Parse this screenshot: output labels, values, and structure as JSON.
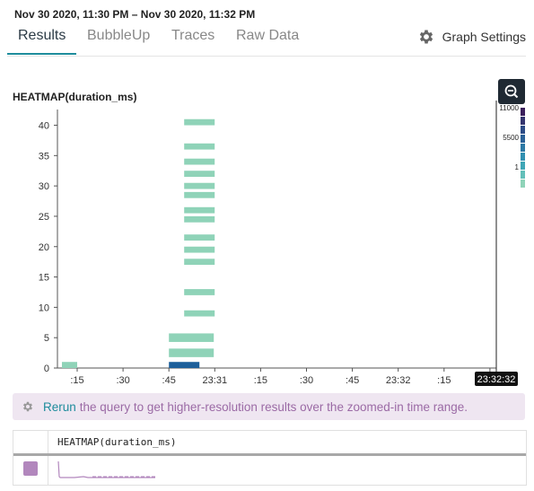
{
  "header": {
    "time_start": "Nov 30 2020, 11:30 PM",
    "time_sep": "–",
    "time_end": "Nov 30 2020, 11:32 PM"
  },
  "tabs": [
    {
      "label": "Results",
      "active": true
    },
    {
      "label": "BubbleUp",
      "active": false
    },
    {
      "label": "Traces",
      "active": false
    },
    {
      "label": "Raw Data",
      "active": false
    }
  ],
  "graph_settings_label": "Graph Settings",
  "chart": {
    "title": "HEATMAP(duration_ms)",
    "colors": {
      "low": "#8fd3b8",
      "mid": "#3fa7b5",
      "high": "#1d5f9a",
      "max": "#3b1f5c"
    }
  },
  "chart_data": {
    "type": "heatmap",
    "title": "HEATMAP(duration_ms)",
    "y_ticks": [
      0,
      5,
      10,
      15,
      20,
      25,
      30,
      35,
      40
    ],
    "ylim": [
      0,
      42
    ],
    "x_ticks": [
      ":15",
      ":30",
      ":45",
      "23:31",
      ":15",
      ":30",
      ":45",
      "23:32",
      ":15",
      ":30"
    ],
    "cursor_time": "23:32:32",
    "legend": {
      "labels": [
        "11000",
        "5500",
        "1"
      ],
      "position": "right"
    },
    "cells": [
      {
        "x": ":45",
        "y": 40.5,
        "level": "low"
      },
      {
        "x": ":45",
        "y": 36.5,
        "level": "low"
      },
      {
        "x": ":45",
        "y": 34.0,
        "level": "low"
      },
      {
        "x": ":45",
        "y": 32.0,
        "level": "low"
      },
      {
        "x": ":45",
        "y": 30.0,
        "level": "low"
      },
      {
        "x": ":45",
        "y": 28.5,
        "level": "low"
      },
      {
        "x": ":45",
        "y": 26.0,
        "level": "low"
      },
      {
        "x": ":45",
        "y": 24.5,
        "level": "low"
      },
      {
        "x": ":45",
        "y": 21.5,
        "level": "low"
      },
      {
        "x": ":45",
        "y": 19.5,
        "level": "low"
      },
      {
        "x": ":45",
        "y": 17.5,
        "level": "low"
      },
      {
        "x": ":45",
        "y": 12.5,
        "level": "low"
      },
      {
        "x": ":45",
        "y": 9.0,
        "level": "low"
      },
      {
        "x": ":45",
        "y": 5.0,
        "level": "low"
      },
      {
        "x": ":45",
        "y": 2.5,
        "level": "low"
      },
      {
        "x": ":45",
        "y": 0.5,
        "level": "high"
      },
      {
        "x": ":15",
        "y": 0.5,
        "level": "low"
      }
    ]
  },
  "banner": {
    "link_label": "Rerun",
    "text": "the query to get higher-resolution results over the zoomed-in time range."
  },
  "table": {
    "column_header": "HEATMAP(duration_ms)",
    "swatch_color": "#b287bd"
  }
}
